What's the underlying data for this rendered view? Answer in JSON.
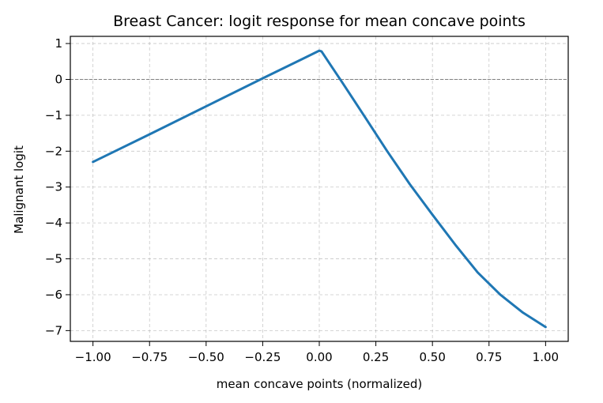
{
  "chart_data": {
    "type": "line",
    "title": "Breast Cancer: logit response for mean concave points",
    "xlabel": "mean concave points (normalized)",
    "ylabel": "Malignant logit",
    "xlim": [
      -1.1,
      1.1
    ],
    "ylim": [
      -7.3,
      1.2
    ],
    "xticks": [
      -1.0,
      -0.75,
      -0.5,
      -0.25,
      0.0,
      0.25,
      0.5,
      0.75,
      1.0
    ],
    "xtick_labels": [
      "−1.00",
      "−0.75",
      "−0.50",
      "−0.25",
      "0.00",
      "0.25",
      "0.50",
      "0.75",
      "1.00"
    ],
    "yticks": [
      1,
      0,
      -1,
      -2,
      -3,
      -4,
      -5,
      -6,
      -7
    ],
    "ytick_labels": [
      "1",
      "0",
      "−1",
      "−2",
      "−3",
      "−4",
      "−5",
      "−6",
      "−7"
    ],
    "grid": true,
    "reference_line": {
      "y": 0,
      "style": "dashed",
      "color": "#808080"
    },
    "series": [
      {
        "color": "#1f77b4",
        "x": [
          -1.0,
          -0.75,
          -0.5,
          -0.25,
          0.0,
          0.01,
          0.05,
          0.1,
          0.2,
          0.3,
          0.4,
          0.5,
          0.6,
          0.7,
          0.8,
          0.9,
          1.0
        ],
        "y": [
          -2.3,
          -1.53,
          -0.75,
          0.03,
          0.8,
          0.78,
          0.4,
          -0.07,
          -1.03,
          -2.0,
          -2.92,
          -3.77,
          -4.6,
          -5.38,
          -6.0,
          -6.5,
          -6.9
        ]
      }
    ]
  }
}
